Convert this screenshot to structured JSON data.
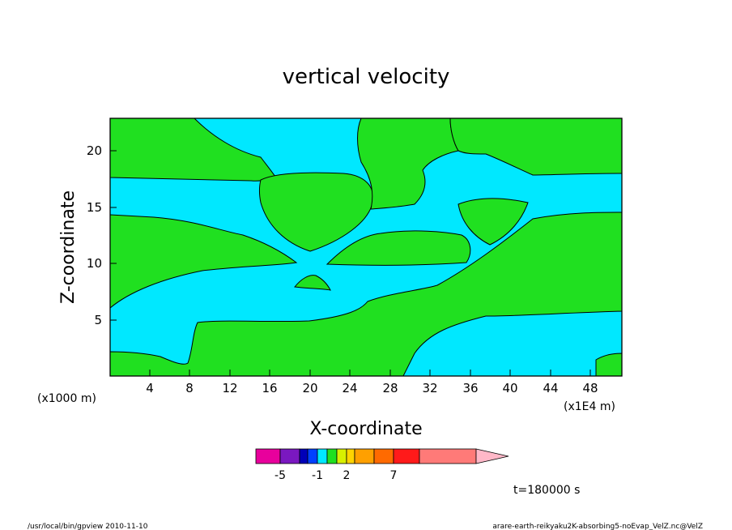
{
  "chart_data": {
    "type": "heatmap",
    "title": "vertical velocity",
    "xlabel": "X-coordinate",
    "ylabel": "Z-coordinate",
    "x_unit_note": "(x1E4 m)",
    "y_unit_note": "(x1000 m)",
    "x_ticks": [
      4,
      8,
      12,
      16,
      20,
      24,
      28,
      32,
      36,
      40,
      44,
      48
    ],
    "y_ticks": [
      5,
      10,
      15,
      20
    ],
    "xlim": [
      0,
      51
    ],
    "ylim": [
      0,
      23
    ],
    "legend": {
      "colors": [
        "#e8009c",
        "#7a18c0",
        "#0000b8",
        "#0040ff",
        "#00e8ff",
        "#20e020",
        "#d8f000",
        "#ffd400",
        "#ffa000",
        "#ff6a00",
        "#ff1a1a",
        "#ff7a78",
        "#ffb8c8"
      ],
      "labels": [
        "-5",
        "-1",
        "2",
        "7"
      ]
    },
    "time_label": "t=180000 s",
    "regions": [
      {
        "level": "positive",
        "color": "#20e020"
      },
      {
        "level": "negative",
        "color": "#00e8ff"
      }
    ]
  },
  "footer": {
    "left": "/usr/local/bin/gpview   2010-11-10",
    "right": "arare-earth-reikyaku2K-absorbing5-noEvap_VelZ.nc@VelZ"
  }
}
